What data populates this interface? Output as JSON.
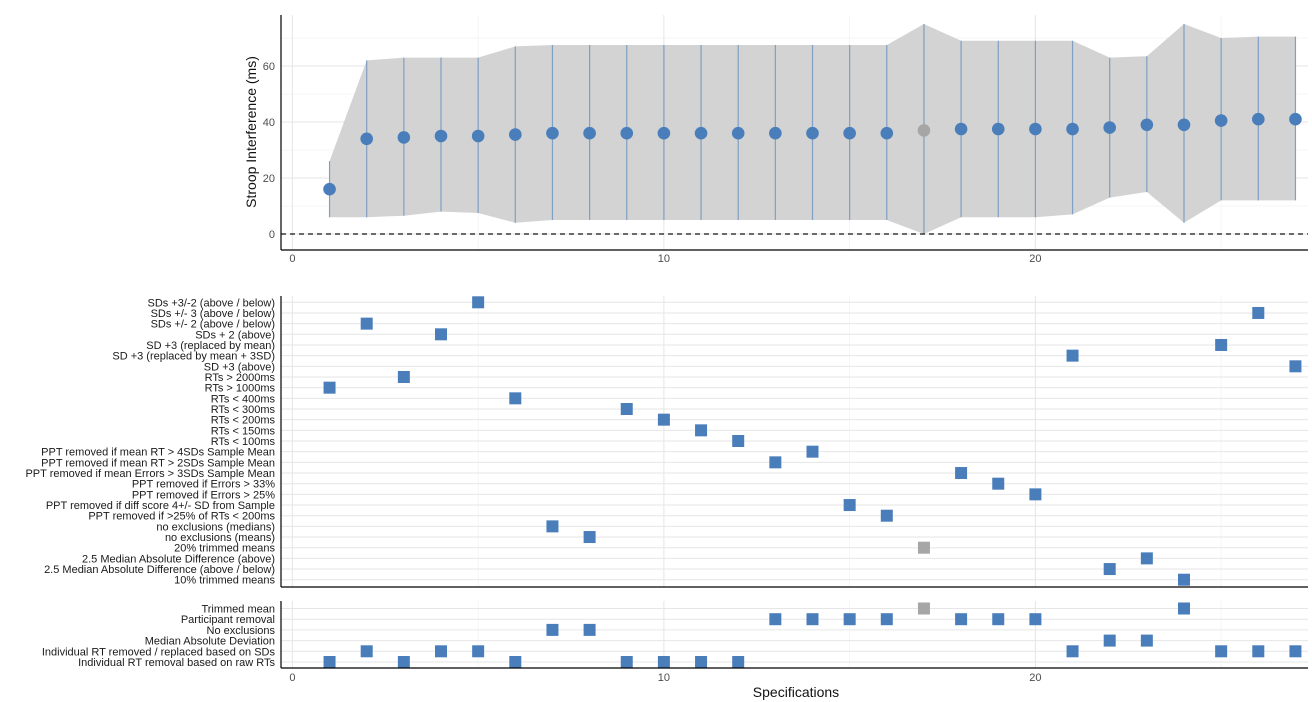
{
  "chart_data": [
    {
      "type": "scatter",
      "panel": "estimates",
      "ylabel": "Stroop Interference (ms)",
      "xlabel": "",
      "xlim": [
        0,
        27
      ],
      "ylim": [
        0,
        75
      ],
      "x_ticks": [
        "0",
        "10",
        "20"
      ],
      "x_tick_values": [
        0,
        10,
        20
      ],
      "y_ticks": [
        "0",
        "20",
        "40",
        "60"
      ],
      "y_tick_values": [
        0,
        20,
        40,
        60
      ],
      "reference_line": 0,
      "grid": true,
      "x": [
        1,
        2,
        3,
        4,
        5,
        6,
        7,
        8,
        9,
        10,
        11,
        12,
        13,
        14,
        15,
        16,
        17,
        18,
        19,
        20,
        21,
        22,
        23,
        24,
        25,
        26,
        27
      ],
      "estimate": [
        16,
        34,
        34.5,
        35,
        35,
        35.5,
        36,
        36,
        36,
        36,
        36,
        36,
        36,
        36,
        36,
        36,
        37,
        37.5,
        37.5,
        37.5,
        37.5,
        38,
        39,
        39,
        40.5,
        41,
        41
      ],
      "lower": [
        6,
        6,
        6.5,
        8,
        7.5,
        4,
        5,
        5,
        5,
        5,
        5,
        5,
        5,
        5,
        5,
        5,
        0,
        6,
        6,
        6,
        7,
        13,
        15,
        4,
        12,
        12,
        12
      ],
      "upper": [
        26,
        62,
        63,
        63,
        63,
        67,
        67.5,
        67.5,
        67.5,
        67.5,
        67.5,
        67.5,
        67.5,
        67.5,
        67.5,
        67.5,
        75,
        69,
        69,
        69,
        69,
        63,
        63.5,
        75,
        70,
        70.5,
        70.5
      ],
      "highlight_x": 17,
      "colors": {
        "point": "#4a7ebb",
        "highlight": "#a6a6a6",
        "band": "#d3d3d3",
        "errorbar": "#7f9fc4"
      }
    },
    {
      "type": "scatter",
      "panel": "exclusion_rules",
      "xlim": [
        0,
        27
      ],
      "x_ticks": [],
      "rows": [
        "SDs +3/-2 (above / below)",
        "SDs +/- 3 (above / below)",
        "SDs +/- 2 (above / below)",
        "SDs + 2 (above)",
        "SD +3 (replaced by mean)",
        "SD +3 (replaced by mean + 3SD)",
        "SD +3 (above)",
        "RTs > 2000ms",
        "RTs > 1000ms",
        "RTs < 400ms",
        "RTs < 300ms",
        "RTs < 200ms",
        "RTs < 150ms",
        "RTs < 100ms",
        "PPT removed if mean RT > 4SDs Sample Mean",
        "PPT removed if mean RT > 2SDs Sample Mean",
        "PPT removed if mean Errors > 3SDs Sample Mean",
        "PPT removed if Errors > 33%",
        "PPT removed if Errors > 25%",
        "PPT removed if diff score 4+/- SD from Sample",
        "PPT removed if >25% of RTs < 200ms",
        "no exclusions (medians)",
        "no exclusions (means)",
        "20% trimmed means",
        "2.5 Median Absolute Difference (above)",
        "2.5 Median Absolute Difference (above / below)",
        "10% trimmed means"
      ],
      "points": [
        {
          "x": 1,
          "row": 8
        },
        {
          "x": 2,
          "row": 2
        },
        {
          "x": 3,
          "row": 7
        },
        {
          "x": 4,
          "row": 3
        },
        {
          "x": 5,
          "row": 0
        },
        {
          "x": 6,
          "row": 9
        },
        {
          "x": 7,
          "row": 21
        },
        {
          "x": 8,
          "row": 22
        },
        {
          "x": 9,
          "row": 10
        },
        {
          "x": 10,
          "row": 11
        },
        {
          "x": 11,
          "row": 12
        },
        {
          "x": 12,
          "row": 13
        },
        {
          "x": 13,
          "row": 15
        },
        {
          "x": 14,
          "row": 14
        },
        {
          "x": 15,
          "row": 19
        },
        {
          "x": 16,
          "row": 20
        },
        {
          "x": 17,
          "row": 23
        },
        {
          "x": 18,
          "row": 16
        },
        {
          "x": 19,
          "row": 17
        },
        {
          "x": 20,
          "row": 18
        },
        {
          "x": 21,
          "row": 5
        },
        {
          "x": 22,
          "row": 25
        },
        {
          "x": 23,
          "row": 24
        },
        {
          "x": 24,
          "row": 26
        },
        {
          "x": 25,
          "row": 4
        },
        {
          "x": 26,
          "row": 1
        },
        {
          "x": 27,
          "row": 6
        }
      ]
    },
    {
      "type": "scatter",
      "panel": "exclusion_category",
      "xlabel": "Specifications",
      "xlim": [
        0,
        27
      ],
      "x_ticks": [
        "0",
        "10",
        "20"
      ],
      "x_tick_values": [
        0,
        10,
        20
      ],
      "rows": [
        "Trimmed mean",
        "Participant removal",
        "No exclusions",
        "Median Absolute Deviation",
        "Individual RT removed / replaced based on SDs",
        "Individual RT removal based on raw RTs"
      ],
      "points": [
        {
          "x": 1,
          "row": 5
        },
        {
          "x": 2,
          "row": 4
        },
        {
          "x": 3,
          "row": 5
        },
        {
          "x": 4,
          "row": 4
        },
        {
          "x": 5,
          "row": 4
        },
        {
          "x": 6,
          "row": 5
        },
        {
          "x": 7,
          "row": 2
        },
        {
          "x": 8,
          "row": 2
        },
        {
          "x": 9,
          "row": 5
        },
        {
          "x": 10,
          "row": 5
        },
        {
          "x": 11,
          "row": 5
        },
        {
          "x": 12,
          "row": 5
        },
        {
          "x": 13,
          "row": 1
        },
        {
          "x": 14,
          "row": 1
        },
        {
          "x": 15,
          "row": 1
        },
        {
          "x": 16,
          "row": 1
        },
        {
          "x": 17,
          "row": 0
        },
        {
          "x": 18,
          "row": 1
        },
        {
          "x": 19,
          "row": 1
        },
        {
          "x": 20,
          "row": 1
        },
        {
          "x": 21,
          "row": 4
        },
        {
          "x": 22,
          "row": 3
        },
        {
          "x": 23,
          "row": 3
        },
        {
          "x": 24,
          "row": 0
        },
        {
          "x": 25,
          "row": 4
        },
        {
          "x": 26,
          "row": 4
        },
        {
          "x": 27,
          "row": 4
        }
      ]
    }
  ]
}
